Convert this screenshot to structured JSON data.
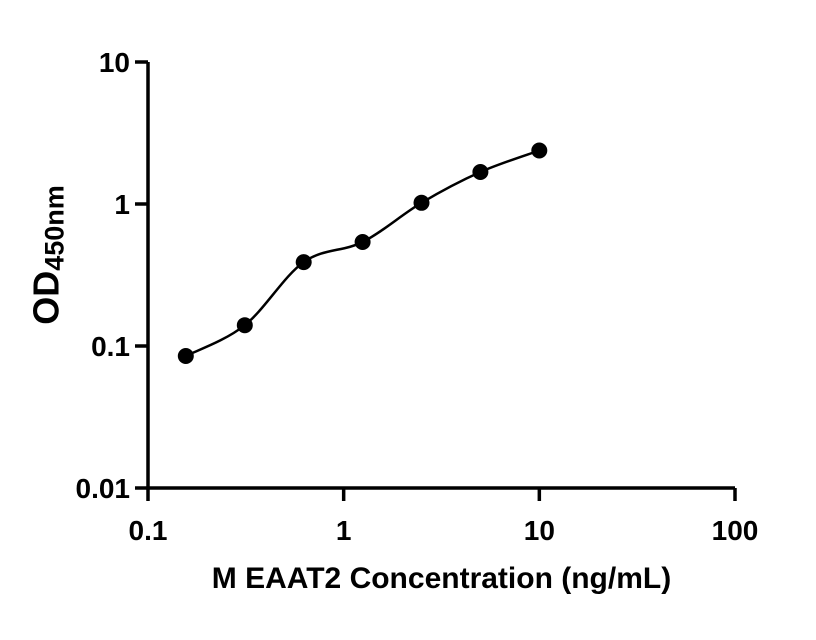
{
  "chart_data": {
    "type": "scatter",
    "title": "",
    "xlabel": "M EAAT2 Concentration (ng/mL)",
    "ylabel_main": "OD",
    "ylabel_sub": "450nm",
    "x_scale": "log",
    "y_scale": "log",
    "xlim": [
      0.1,
      100
    ],
    "ylim": [
      0.01,
      10
    ],
    "x_ticks": [
      0.1,
      1,
      10,
      100
    ],
    "x_tick_labels": [
      "0.1",
      "1",
      "10",
      "100"
    ],
    "y_ticks": [
      0.01,
      0.1,
      1,
      10
    ],
    "y_tick_labels": [
      "0.01",
      "0.1",
      "1",
      "10"
    ],
    "grid": false,
    "legend": "none",
    "curve_fit": true,
    "x": [
      0.156,
      0.3125,
      0.625,
      1.25,
      2.5,
      5,
      10
    ],
    "y": [
      0.085,
      0.14,
      0.39,
      0.54,
      1.02,
      1.68,
      2.38
    ],
    "marker_color": "#000000",
    "line_color": "#000000",
    "axis_color": "#000000",
    "background_color": "#ffffff"
  }
}
